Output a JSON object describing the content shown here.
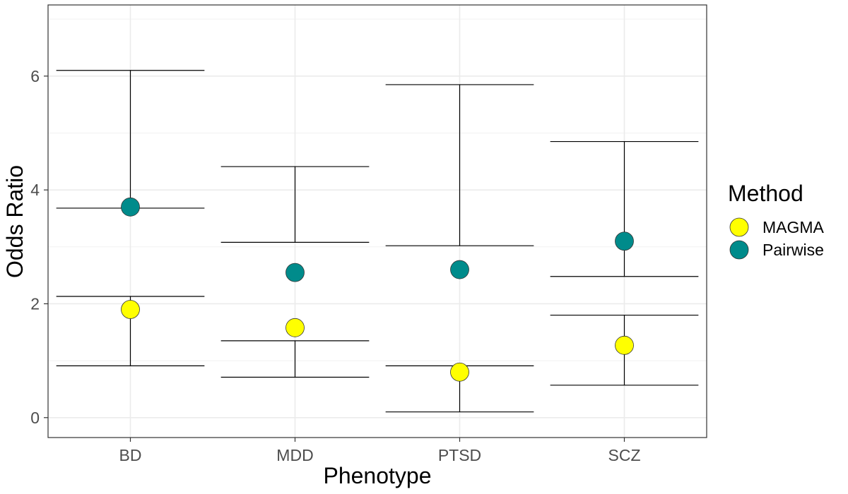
{
  "chart_data": {
    "type": "scatter",
    "xlabel": "Phenotype",
    "ylabel": "Odds Ratio",
    "categories": [
      "BD",
      "MDD",
      "PTSD",
      "SCZ"
    ],
    "ylim": [
      -0.35,
      7.25
    ],
    "y_ticks": [
      0,
      2,
      4,
      6
    ],
    "y_tick_labels": [
      "0",
      "2",
      "4",
      "6"
    ],
    "grid": true,
    "legend": {
      "title": "Method",
      "position": "right",
      "entries": [
        {
          "label": "MAGMA",
          "color": "#FFFF00"
        },
        {
          "label": "Pairwise",
          "color": "#008B8B"
        }
      ]
    },
    "series": [
      {
        "name": "MAGMA",
        "color": "#FFFF00",
        "values": [
          1.9,
          1.58,
          0.8,
          1.27
        ],
        "lower": [
          0.91,
          0.71,
          0.1,
          0.57
        ],
        "upper": [
          2.13,
          1.35,
          0.91,
          1.8
        ]
      },
      {
        "name": "Pairwise",
        "color": "#008B8B",
        "values": [
          3.7,
          2.55,
          2.6,
          3.1
        ],
        "lower": [
          3.68,
          3.08,
          3.02,
          2.48
        ],
        "upper": [
          6.1,
          4.41,
          5.85,
          4.85
        ]
      }
    ]
  }
}
